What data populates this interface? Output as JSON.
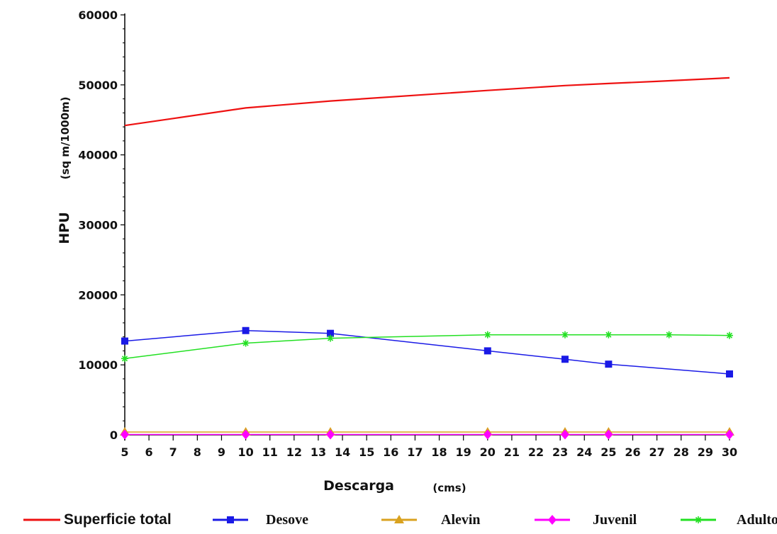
{
  "chart_data": {
    "type": "line",
    "title": "",
    "xlabel": "Descarga",
    "xlabel_unit": "(cms)",
    "ylabel": "HPU",
    "ylabel_unit": "(sq m/1000m)",
    "xlim": [
      5,
      30
    ],
    "ylim": [
      0,
      60000
    ],
    "x_ticks": [
      "5",
      "6",
      "7",
      "8",
      "9",
      "10",
      "11",
      "12",
      "13",
      "14",
      "15",
      "16",
      "17",
      "18",
      "19",
      "20",
      "21",
      "22",
      "23",
      "24",
      "25",
      "26",
      "27",
      "28",
      "29",
      "30"
    ],
    "y_ticks": [
      "0",
      "10000",
      "20000",
      "30000",
      "40000",
      "50000",
      "60000"
    ],
    "grid": false,
    "legend_position": "bottom",
    "series": [
      {
        "name": "Superficie total",
        "color": "#ee1111",
        "marker": "none",
        "points": [
          [
            5,
            44200
          ],
          [
            7,
            45200
          ],
          [
            10,
            46700
          ],
          [
            13.5,
            47700
          ],
          [
            20,
            49200
          ],
          [
            23.2,
            49900
          ],
          [
            25,
            50200
          ],
          [
            27,
            50500
          ],
          [
            30,
            51000
          ]
        ]
      },
      {
        "name": "Desove",
        "color": "#1a1ae6",
        "marker": "square",
        "points": [
          [
            5,
            13400
          ],
          [
            10,
            14900
          ],
          [
            13.5,
            14500
          ],
          [
            20,
            12000
          ],
          [
            23.2,
            10800
          ],
          [
            25,
            10100
          ],
          [
            30,
            8700
          ]
        ]
      },
      {
        "name": "Alevin",
        "color": "#d9a21f",
        "marker": "triangle",
        "points": [
          [
            5,
            400
          ],
          [
            10,
            400
          ],
          [
            13.5,
            400
          ],
          [
            20,
            400
          ],
          [
            23.2,
            400
          ],
          [
            25,
            400
          ],
          [
            30,
            400
          ]
        ]
      },
      {
        "name": "Juvenil",
        "color": "#ff00ff",
        "marker": "diamond",
        "points": [
          [
            5,
            50
          ],
          [
            10,
            50
          ],
          [
            13.5,
            50
          ],
          [
            20,
            50
          ],
          [
            23.2,
            50
          ],
          [
            25,
            50
          ],
          [
            30,
            50
          ]
        ]
      },
      {
        "name": "Adulto",
        "color": "#22e022",
        "marker": "asterisk",
        "points": [
          [
            5,
            10900
          ],
          [
            10,
            13100
          ],
          [
            13.5,
            13800
          ],
          [
            20,
            14300
          ],
          [
            23.2,
            14300
          ],
          [
            25,
            14300
          ],
          [
            27.5,
            14300
          ],
          [
            30,
            14200
          ]
        ]
      }
    ]
  }
}
